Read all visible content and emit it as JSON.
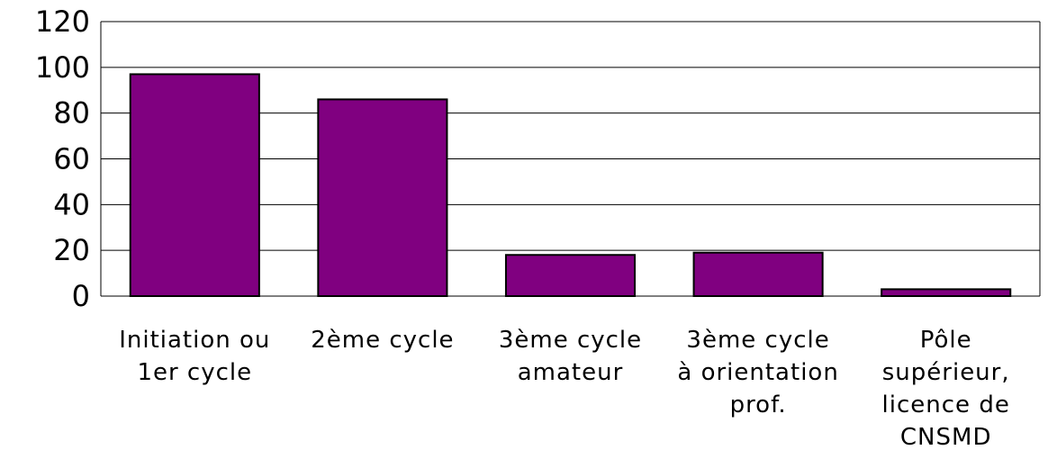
{
  "chart_data": {
    "type": "bar",
    "categories": [
      "Initiation ou 1er cycle",
      "2ème cycle",
      "3ème cycle amateur",
      "3ème cycle à orientation prof.",
      "Pôle supérieur, licence de CNSMD"
    ],
    "values": [
      97,
      86,
      18,
      19,
      3
    ],
    "color": "#800080",
    "ylim": [
      0,
      120
    ],
    "yticks": [
      0,
      20,
      40,
      60,
      80,
      100,
      120
    ],
    "grid": true
  }
}
